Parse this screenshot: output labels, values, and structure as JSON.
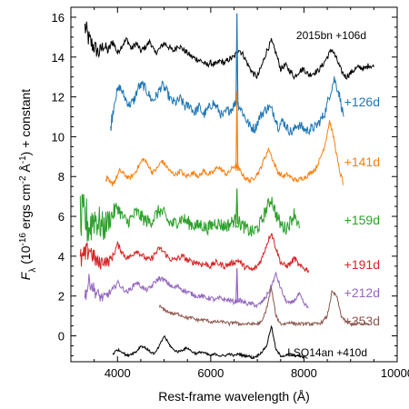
{
  "chart_data": {
    "type": "line",
    "xlabel": "Rest-frame wavelength (Å)",
    "ylabel": "F_λ (10^-16 ergs cm^-2 Å^-1) + constant",
    "xlim": [
      3000,
      10000
    ],
    "ylim": [
      -1.3,
      16.5
    ],
    "x_ticks": [
      4000,
      6000,
      8000,
      10000
    ],
    "y_ticks": [
      0,
      2,
      4,
      6,
      8,
      10,
      12,
      14,
      16
    ],
    "grid": false,
    "series": [
      {
        "name": "2015bn +106d",
        "color": "#000000",
        "x": [
          3300,
          3400,
          3500,
          3600,
          3700,
          3800,
          3900,
          4000,
          4100,
          4200,
          4300,
          4400,
          4500,
          4600,
          4700,
          4800,
          4900,
          5000,
          5100,
          5200,
          5300,
          5400,
          5500,
          5600,
          5700,
          5800,
          5900,
          6000,
          6100,
          6200,
          6300,
          6400,
          6500,
          6600,
          6700,
          6800,
          6900,
          7000,
          7100,
          7200,
          7300,
          7400,
          7500,
          7600,
          7700,
          7800,
          7900,
          8000,
          8100,
          8200,
          8300,
          8400,
          8500,
          8600,
          8700,
          8800,
          8900,
          9000,
          9100,
          9200,
          9300,
          9400,
          9500
        ],
        "y": [
          15.5,
          14.8,
          14.5,
          14.2,
          14.6,
          14.3,
          14.8,
          14.2,
          14.6,
          14.9,
          14.4,
          14.7,
          14.3,
          14.5,
          14.8,
          14.2,
          14.4,
          14.7,
          14.5,
          14.3,
          14.6,
          14.4,
          14.2,
          14.0,
          13.9,
          13.8,
          13.6,
          13.7,
          13.6,
          13.8,
          13.7,
          13.9,
          14.0,
          14.4,
          14.1,
          13.6,
          13.2,
          13.0,
          13.6,
          14.3,
          14.8,
          14.2,
          13.4,
          13.6,
          13.3,
          13.0,
          13.3,
          13.4,
          13.1,
          13.2,
          13.3,
          13.6,
          14.0,
          14.4,
          13.9,
          13.3,
          13.0,
          13.2,
          13.4,
          13.5,
          13.4,
          13.6,
          13.5
        ],
        "noise_amplitude": 0.15
      },
      {
        "name": "+126d",
        "color": "#1f77b4",
        "x": [
          3850,
          3950,
          4050,
          4150,
          4250,
          4350,
          4450,
          4550,
          4650,
          4750,
          4850,
          4950,
          5050,
          5150,
          5250,
          5350,
          5450,
          5550,
          5650,
          5750,
          5850,
          5950,
          6050,
          6150,
          6250,
          6350,
          6450,
          6550,
          6650,
          6750,
          6850,
          6950,
          7050,
          7150,
          7250,
          7350,
          7450,
          7550,
          7650,
          7750,
          7850,
          7950,
          8050,
          8150,
          8250,
          8350,
          8450,
          8550,
          8650,
          8750,
          8850
        ],
        "y": [
          10.5,
          12.0,
          12.5,
          12.0,
          11.6,
          11.8,
          12.5,
          12.6,
          12.2,
          11.8,
          12.1,
          12.6,
          12.3,
          11.8,
          11.7,
          11.9,
          11.5,
          11.6,
          11.2,
          11.5,
          11.1,
          11.4,
          11.7,
          11.4,
          11.0,
          11.3,
          11.4,
          11.8,
          11.4,
          10.9,
          10.5,
          10.4,
          11.0,
          11.3,
          11.5,
          11.2,
          10.5,
          10.8,
          10.4,
          10.2,
          10.6,
          10.5,
          10.3,
          10.4,
          10.5,
          10.8,
          11.2,
          12.1,
          12.9,
          12.2,
          11.0
        ],
        "noise_amplitude": 0.25
      },
      {
        "name": "+141d",
        "color": "#ff7f0e",
        "x": [
          3750,
          3850,
          3950,
          4050,
          4150,
          4250,
          4350,
          4450,
          4550,
          4650,
          4750,
          4850,
          4950,
          5050,
          5150,
          5250,
          5350,
          5450,
          5550,
          5650,
          5750,
          5850,
          5950,
          6050,
          6150,
          6250,
          6350,
          6450,
          6550,
          6650,
          6750,
          6850,
          6950,
          7050,
          7150,
          7250,
          7350,
          7450,
          7550,
          7650,
          7750,
          7850,
          7950,
          8050,
          8150,
          8250,
          8350,
          8450,
          8550,
          8650,
          8750,
          8850
        ],
        "y": [
          7.9,
          7.6,
          7.8,
          8.3,
          8.1,
          7.9,
          8.1,
          8.5,
          8.9,
          8.6,
          8.2,
          8.4,
          8.8,
          8.5,
          8.2,
          8.1,
          8.3,
          8.0,
          8.1,
          8.2,
          8.0,
          8.3,
          8.1,
          8.2,
          8.5,
          8.3,
          8.1,
          8.4,
          8.6,
          8.2,
          7.9,
          7.8,
          8.0,
          8.3,
          8.9,
          9.4,
          8.7,
          8.2,
          8.0,
          8.1,
          7.9,
          7.8,
          7.9,
          8.0,
          8.2,
          8.4,
          8.9,
          9.6,
          10.8,
          9.8,
          8.4,
          7.6
        ],
        "noise_amplitude": 0.12
      },
      {
        "name": "+159d",
        "color": "#2ca02c",
        "x": [
          3200,
          3300,
          3400,
          3500,
          3600,
          3700,
          3800,
          3900,
          4000,
          4100,
          4200,
          4300,
          4400,
          4500,
          4600,
          4700,
          4800,
          4900,
          5000,
          5100,
          5200,
          5300,
          5400,
          5500,
          5600,
          5700,
          5800,
          5900,
          6000,
          6100,
          6200,
          6300,
          6400,
          6500,
          6600,
          6700,
          6800,
          6900,
          7000,
          7100,
          7200,
          7300,
          7400,
          7500,
          7600,
          7700,
          7800,
          7900
        ],
        "y": [
          5.6,
          5.9,
          5.5,
          6.0,
          5.7,
          5.4,
          5.8,
          6.1,
          6.5,
          6.0,
          5.7,
          5.9,
          6.2,
          6.0,
          5.8,
          5.7,
          6.0,
          6.3,
          6.1,
          5.7,
          5.6,
          5.8,
          5.9,
          5.7,
          5.6,
          5.5,
          5.6,
          5.4,
          5.5,
          5.7,
          5.6,
          5.5,
          5.6,
          5.8,
          5.7,
          5.5,
          5.3,
          5.2,
          5.4,
          5.8,
          6.4,
          6.9,
          6.1,
          5.6,
          5.4,
          5.7,
          6.2,
          5.4
        ],
        "noise_amplitude": 0.35
      },
      {
        "name": "+191d",
        "color": "#d62728",
        "x": [
          3200,
          3300,
          3400,
          3500,
          3600,
          3700,
          3800,
          3900,
          4000,
          4100,
          4200,
          4300,
          4400,
          4500,
          4600,
          4700,
          4800,
          4900,
          5000,
          5100,
          5200,
          5300,
          5400,
          5500,
          5600,
          5700,
          5800,
          5900,
          6000,
          6100,
          6200,
          6300,
          6400,
          6500,
          6600,
          6700,
          6800,
          6900,
          7000,
          7100,
          7200,
          7300,
          7400,
          7500,
          7600,
          7700,
          7800,
          7900,
          8000,
          8100
        ],
        "y": [
          3.8,
          4.0,
          4.4,
          3.9,
          3.6,
          3.8,
          3.7,
          4.0,
          4.6,
          4.2,
          3.9,
          4.0,
          4.3,
          4.1,
          3.9,
          3.8,
          4.1,
          4.4,
          4.2,
          3.9,
          3.8,
          3.9,
          4.0,
          3.8,
          3.7,
          3.7,
          3.6,
          3.6,
          3.5,
          3.7,
          3.6,
          3.5,
          3.6,
          3.7,
          3.8,
          3.5,
          3.4,
          3.3,
          3.5,
          3.9,
          4.6,
          5.2,
          4.4,
          3.7,
          3.5,
          3.6,
          3.9,
          3.5,
          3.4,
          3.3
        ],
        "noise_amplitude": 0.15
      },
      {
        "name": "+212d",
        "color": "#9467bd",
        "x": [
          3300,
          3400,
          3500,
          3600,
          3700,
          3800,
          3900,
          4000,
          4100,
          4200,
          4300,
          4400,
          4500,
          4600,
          4700,
          4800,
          4900,
          5000,
          5100,
          5200,
          5300,
          5400,
          5500,
          5600,
          5700,
          5800,
          5900,
          6000,
          6100,
          6200,
          6300,
          6400,
          6500,
          6600,
          6700,
          6800,
          6900,
          7000,
          7100,
          7200,
          7300,
          7400,
          7500,
          7600,
          7700,
          7800,
          7900,
          8000,
          8100
        ],
        "y": [
          2.0,
          2.8,
          2.3,
          2.0,
          1.9,
          2.1,
          2.3,
          2.7,
          2.4,
          2.2,
          2.4,
          2.7,
          2.5,
          2.3,
          2.4,
          2.7,
          2.9,
          2.8,
          2.6,
          2.4,
          2.5,
          2.3,
          2.2,
          2.1,
          2.0,
          2.0,
          1.9,
          1.9,
          1.8,
          1.9,
          1.8,
          1.8,
          1.7,
          1.8,
          1.7,
          1.6,
          1.6,
          1.5,
          1.7,
          2.0,
          2.5,
          3.1,
          2.4,
          1.8,
          1.6,
          1.8,
          2.1,
          1.6,
          1.4
        ],
        "noise_amplitude": 0.12
      },
      {
        "name": "+353d",
        "color": "#8c564b",
        "x": [
          4900,
          5000,
          5100,
          5200,
          5300,
          5400,
          5500,
          5600,
          5700,
          5800,
          5900,
          6000,
          6100,
          6200,
          6300,
          6400,
          6500,
          6600,
          6700,
          6800,
          6900,
          7000,
          7100,
          7200,
          7300,
          7400,
          7500,
          7600,
          7700,
          7800,
          7900,
          8000,
          8100,
          8200,
          8300,
          8400,
          8500,
          8600,
          8700,
          8800,
          8900,
          9000,
          9100,
          9200,
          9300,
          9400
        ],
        "y": [
          1.5,
          1.3,
          1.2,
          1.1,
          1.1,
          1.0,
          0.9,
          0.9,
          0.8,
          0.8,
          0.8,
          0.7,
          0.7,
          0.7,
          0.7,
          0.6,
          0.7,
          0.6,
          0.6,
          0.6,
          0.6,
          0.6,
          0.7,
          1.4,
          2.4,
          1.0,
          0.6,
          0.6,
          0.7,
          0.6,
          0.6,
          0.6,
          0.6,
          0.6,
          0.6,
          0.7,
          1.0,
          2.2,
          2.0,
          1.0,
          0.7,
          0.6,
          0.6,
          0.6,
          0.6,
          0.6
        ],
        "noise_amplitude": 0.08
      },
      {
        "name": "LSQ14an +410d",
        "color": "#000000",
        "x": [
          3900,
          4000,
          4100,
          4200,
          4300,
          4400,
          4500,
          4600,
          4700,
          4800,
          4900,
          5000,
          5100,
          5200,
          5300,
          5400,
          5500,
          5600,
          5700,
          5800,
          5900,
          6000,
          6100,
          6200,
          6300,
          6400,
          6500,
          6600,
          6700,
          6800,
          6900,
          7000,
          7100,
          7200,
          7300,
          7400,
          7500,
          7600,
          7700,
          7800,
          7900,
          8000
        ],
        "y": [
          -0.9,
          -0.7,
          -0.8,
          -1.0,
          -0.9,
          -0.8,
          -0.5,
          -0.6,
          -0.8,
          -0.9,
          -0.5,
          0.0,
          -0.4,
          -0.7,
          -0.8,
          -0.7,
          -0.6,
          -0.8,
          -0.9,
          -0.8,
          -0.9,
          -1.0,
          -0.9,
          -1.0,
          -1.0,
          -0.9,
          -1.0,
          -0.9,
          -1.0,
          -1.0,
          -1.1,
          -1.0,
          -0.8,
          -0.5,
          0.5,
          -0.7,
          -1.0,
          -1.0,
          -0.9,
          -1.0,
          -1.0,
          -1.1
        ],
        "noise_amplitude": 0.06
      }
    ]
  }
}
